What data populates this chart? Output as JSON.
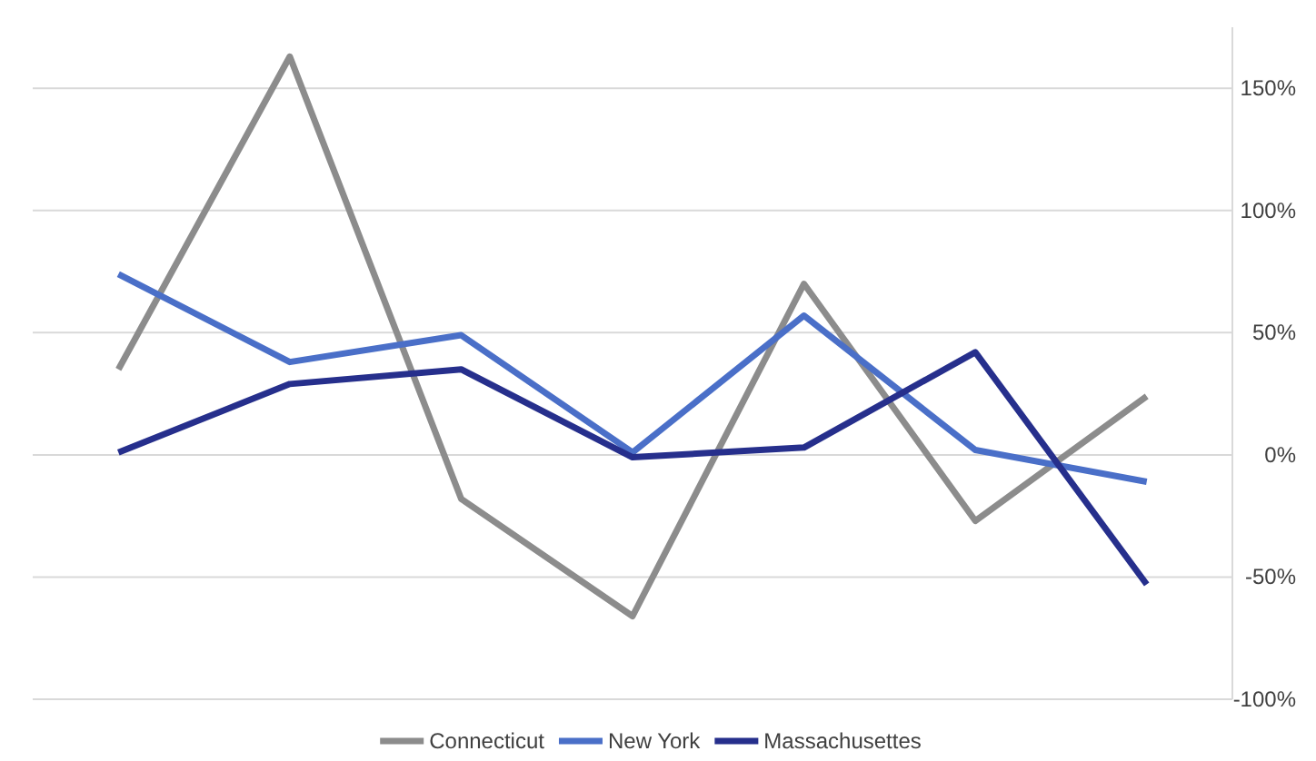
{
  "chart_data": {
    "type": "line",
    "categories": [
      null,
      null,
      null,
      null,
      null,
      null,
      null
    ],
    "series": [
      {
        "name": "Connecticut",
        "color": "#8c8c8c",
        "values": [
          35,
          163,
          -18,
          -66,
          70,
          -27,
          24
        ]
      },
      {
        "name": "New York",
        "color": "#4a6fc8",
        "values": [
          74,
          38,
          49,
          1,
          57,
          2,
          -11
        ]
      },
      {
        "name": "Massachusettes",
        "color": "#262f8c",
        "values": [
          1,
          29,
          35,
          -1,
          3,
          42,
          -53
        ]
      }
    ],
    "ylim": [
      -100,
      175
    ],
    "yticks": [
      {
        "value": -100,
        "label": "-100%"
      },
      {
        "value": -50,
        "label": "-50%"
      },
      {
        "value": 0,
        "label": "0%"
      },
      {
        "value": 50,
        "label": "50%"
      },
      {
        "value": 100,
        "label": "100%"
      },
      {
        "value": 150,
        "label": "150%"
      }
    ],
    "grid": "y",
    "legend": "bottom",
    "marker": "none",
    "line_style": "solid"
  }
}
